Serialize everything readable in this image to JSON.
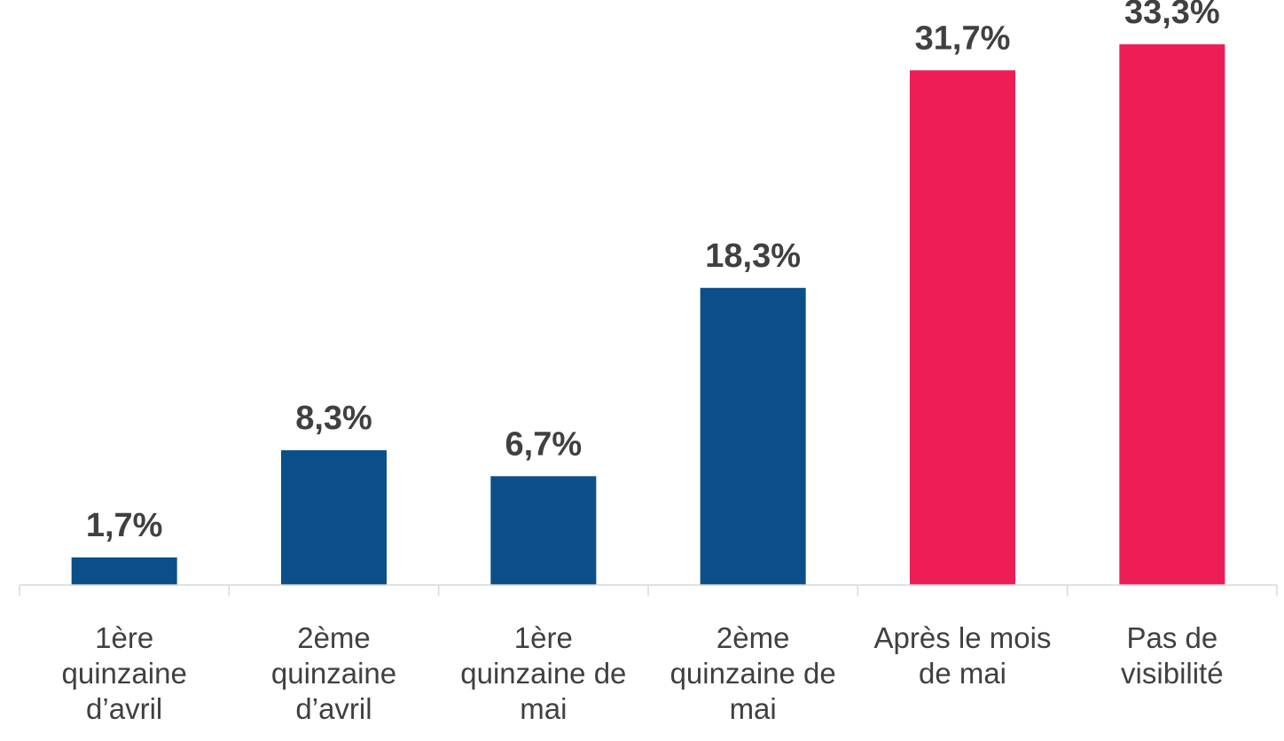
{
  "chart_data": {
    "type": "bar",
    "categories": [
      "1ère quinzaine d’avril",
      "2ème quinzaine d’avril",
      "1ère quinzaine de mai",
      "2ème quinzaine de mai",
      "Après le mois de mai",
      "Pas de visibilité"
    ],
    "values": [
      1.7,
      8.3,
      6.7,
      18.3,
      31.7,
      33.3
    ],
    "value_labels": [
      "1,7%",
      "8,3%",
      "6,7%",
      "18,3%",
      "31,7%",
      "33,3%"
    ],
    "colors": [
      "#0b4f8a",
      "#0b4f8a",
      "#0b4f8a",
      "#0b4f8a",
      "#ee1d56",
      "#ee1d56"
    ]
  }
}
